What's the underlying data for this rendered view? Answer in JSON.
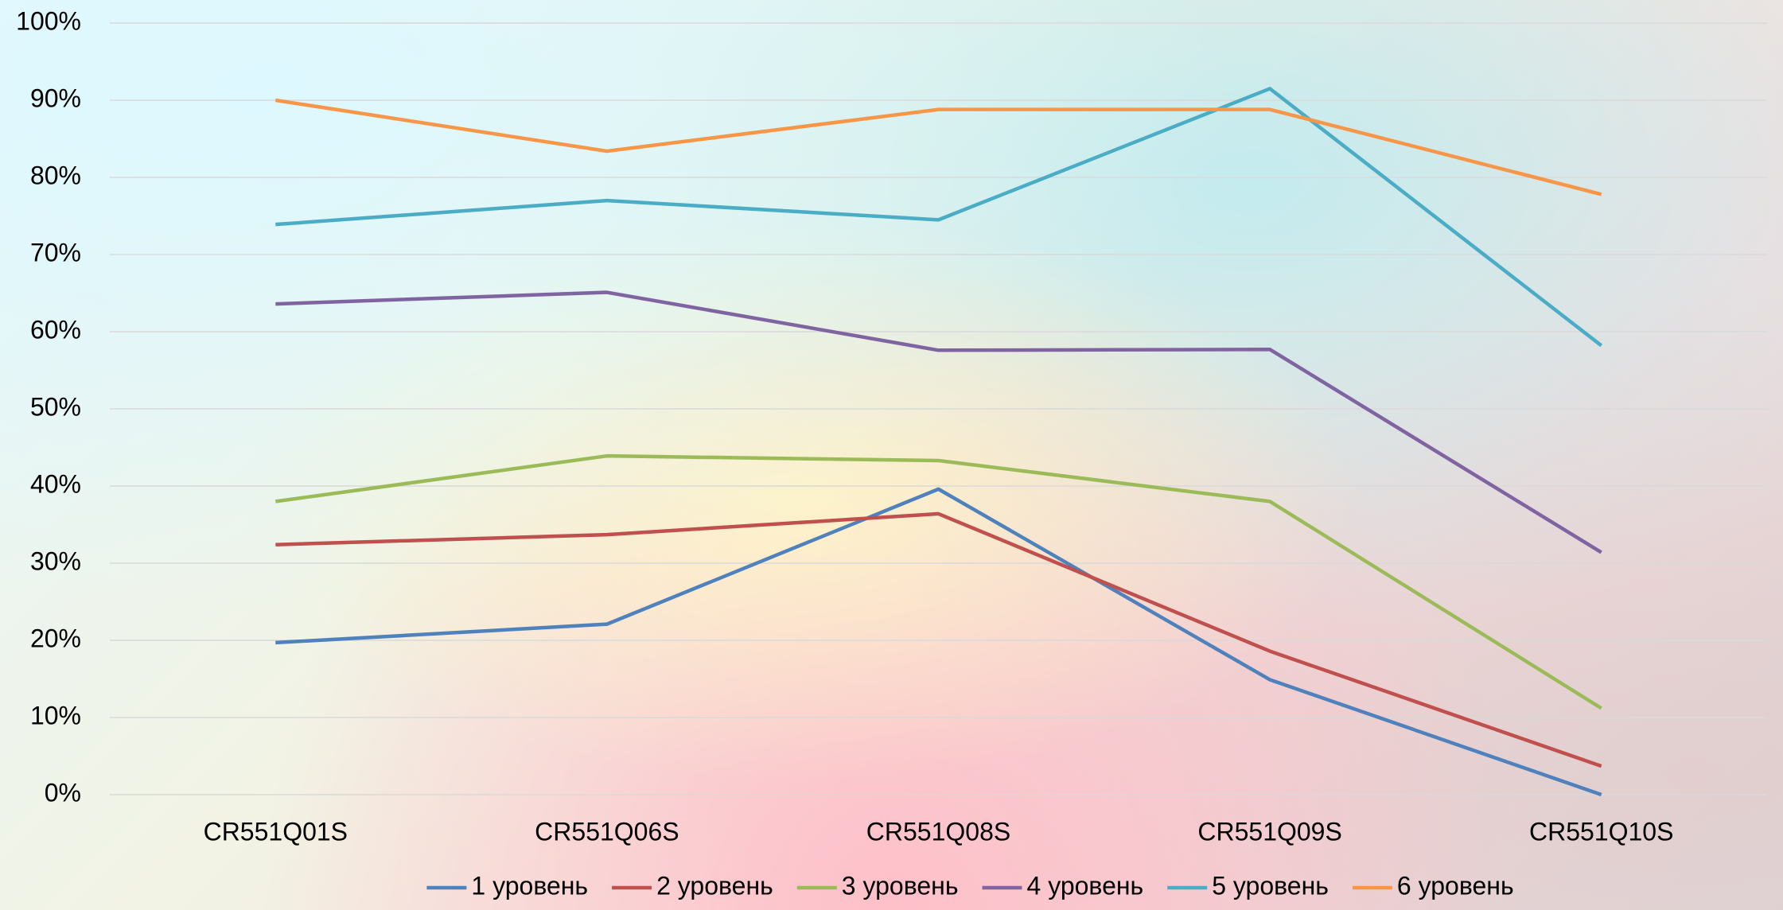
{
  "chart_data": {
    "type": "line",
    "categories": [
      "CR551Q01S",
      "CR551Q06S",
      "CR551Q08S",
      "CR551Q09S",
      "CR551Q10S"
    ],
    "series": [
      {
        "name": "1 уровень",
        "color": "#4f81bd",
        "values": [
          19.7,
          22.1,
          39.6,
          14.9,
          0
        ]
      },
      {
        "name": "2 уровень",
        "color": "#c0504d",
        "values": [
          32.4,
          33.7,
          36.4,
          18.6,
          3.7
        ]
      },
      {
        "name": "3 уровень",
        "color": "#9bbb59",
        "values": [
          38.0,
          43.9,
          43.3,
          38.0,
          11.2
        ]
      },
      {
        "name": "4 уровень",
        "color": "#8064a2",
        "values": [
          63.6,
          65.1,
          57.6,
          57.7,
          31.4
        ]
      },
      {
        "name": "5 уровень",
        "color": "#4bacc6",
        "values": [
          73.9,
          77.0,
          74.5,
          91.5,
          58.2
        ]
      },
      {
        "name": "6 уровень",
        "color": "#f79646",
        "values": [
          90.0,
          83.4,
          88.8,
          88.8,
          77.8
        ]
      }
    ],
    "ylim": [
      0,
      100
    ],
    "yticks": [
      {
        "value": 0,
        "label": "0%"
      },
      {
        "value": 10,
        "label": "10%"
      },
      {
        "value": 20,
        "label": "20%"
      },
      {
        "value": 30,
        "label": "30%"
      },
      {
        "value": 40,
        "label": "40%"
      },
      {
        "value": 50,
        "label": "50%"
      },
      {
        "value": 60,
        "label": "60%"
      },
      {
        "value": 70,
        "label": "70%"
      },
      {
        "value": 80,
        "label": "80%"
      },
      {
        "value": 90,
        "label": "90%"
      },
      {
        "value": 100,
        "label": "100%"
      }
    ],
    "grid": true,
    "legend": "bottom"
  }
}
